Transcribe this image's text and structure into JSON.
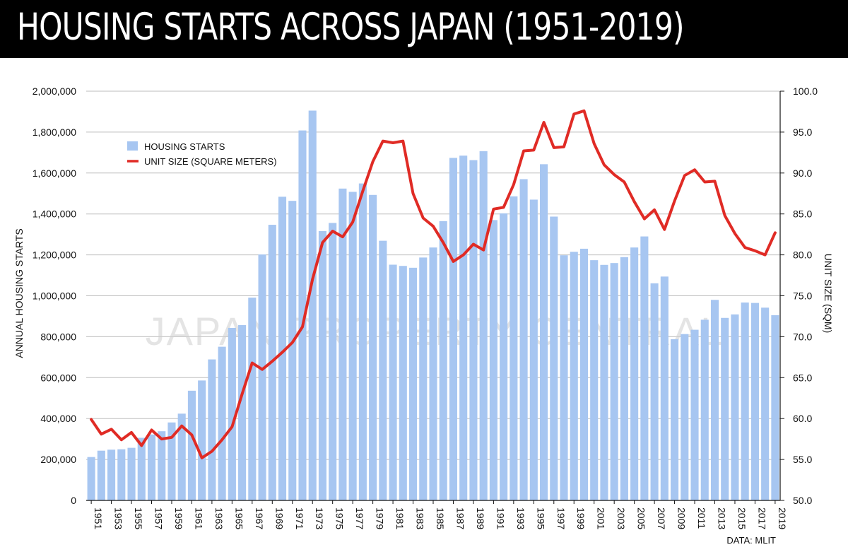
{
  "title": "HOUSING STARTS ACROSS JAPAN (1951-2019)",
  "watermark": "JAPAN PROPERTY CENTRAL",
  "source": "DATA: MLIT",
  "colors": {
    "bar": "#a7c6f1",
    "line": "#e02b25",
    "grid": "#bdbdbd",
    "title_bg": "#000000"
  },
  "chart_data": {
    "type": "bar+line",
    "title": "HOUSING STARTS ACROSS JAPAN (1951-2019)",
    "xlabel": "",
    "ylabel": "ANNUAL HOUSING STARTS",
    "y2label": "UNIT SIZE (SQM)",
    "ylim": [
      0,
      2000000
    ],
    "y2lim": [
      50,
      100
    ],
    "yticks": [
      "0",
      "200,000",
      "400,000",
      "600,000",
      "800,000",
      "1,000,000",
      "1,200,000",
      "1,400,000",
      "1,600,000",
      "1,800,000",
      "2,000,000"
    ],
    "y2ticks": [
      "50.0",
      "55.0",
      "60.0",
      "65.0",
      "70.0",
      "75.0",
      "80.0",
      "85.0",
      "90.0",
      "95.0",
      "100.0"
    ],
    "xticks": [
      "1951",
      "1953",
      "1955",
      "1957",
      "1959",
      "1961",
      "1963",
      "1965",
      "1967",
      "1969",
      "1971",
      "1973",
      "1975",
      "1977",
      "1979",
      "1981",
      "1983",
      "1985",
      "1987",
      "1989",
      "1991",
      "1993",
      "1995",
      "1997",
      "1999",
      "2001",
      "2003",
      "2005",
      "2007",
      "2009",
      "2011",
      "2013",
      "2015",
      "2017",
      "2019"
    ],
    "legend_position": "upper-left",
    "categories": [
      1951,
      1952,
      1953,
      1954,
      1955,
      1956,
      1957,
      1958,
      1959,
      1960,
      1961,
      1962,
      1963,
      1964,
      1965,
      1966,
      1967,
      1968,
      1969,
      1970,
      1971,
      1972,
      1973,
      1974,
      1975,
      1976,
      1977,
      1978,
      1979,
      1980,
      1981,
      1982,
      1983,
      1984,
      1985,
      1986,
      1987,
      1988,
      1989,
      1990,
      1991,
      1992,
      1993,
      1994,
      1995,
      1996,
      1997,
      1998,
      1999,
      2000,
      2001,
      2002,
      2003,
      2004,
      2005,
      2006,
      2007,
      2008,
      2009,
      2010,
      2011,
      2012,
      2013,
      2014,
      2015,
      2016,
      2017,
      2018,
      2019
    ],
    "series": [
      {
        "name": "HOUSING STARTS",
        "type": "bar",
        "axis": "left",
        "values": [
          212000,
          243000,
          248000,
          250000,
          257000,
          306000,
          322000,
          338000,
          381000,
          424000,
          536000,
          586000,
          689000,
          751000,
          843000,
          857000,
          991000,
          1202000,
          1347000,
          1484000,
          1464000,
          1808000,
          1905000,
          1316000,
          1356000,
          1524000,
          1508000,
          1549000,
          1493000,
          1269000,
          1152000,
          1146000,
          1137000,
          1187000,
          1236000,
          1365000,
          1674000,
          1685000,
          1663000,
          1707000,
          1370000,
          1403000,
          1486000,
          1570000,
          1470000,
          1643000,
          1387000,
          1198000,
          1215000,
          1230000,
          1174000,
          1151000,
          1160000,
          1189000,
          1236000,
          1290000,
          1061000,
          1094000,
          788000,
          813000,
          834000,
          883000,
          980000,
          892000,
          909000,
          967000,
          965000,
          942000,
          905000
        ]
      },
      {
        "name": "UNIT SIZE (SQUARE METERS)",
        "type": "line",
        "axis": "right",
        "values": [
          59.9,
          58.1,
          58.7,
          57.4,
          58.3,
          56.7,
          58.6,
          57.5,
          57.7,
          59.1,
          58.0,
          55.2,
          56.0,
          57.4,
          59.0,
          63.0,
          66.8,
          66.0,
          67.0,
          68.1,
          69.3,
          71.2,
          77.0,
          81.5,
          82.9,
          82.2,
          84.0,
          87.8,
          91.4,
          93.9,
          93.7,
          93.9,
          87.5,
          84.5,
          83.5,
          81.5,
          79.2,
          80.0,
          81.3,
          80.6,
          85.6,
          85.8,
          88.6,
          92.7,
          92.8,
          96.2,
          93.1,
          93.2,
          97.2,
          97.6,
          93.6,
          91.0,
          89.8,
          88.9,
          86.5,
          84.4,
          85.5,
          83.1,
          86.6,
          89.7,
          90.4,
          88.9,
          89.0,
          84.8,
          82.6,
          80.9,
          80.5,
          80.0,
          82.7
        ]
      }
    ]
  }
}
